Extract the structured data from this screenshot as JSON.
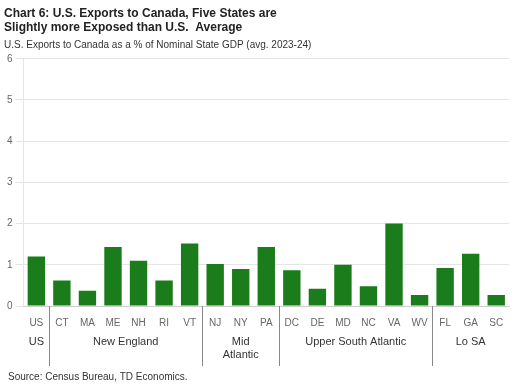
{
  "chart_data": {
    "type": "bar",
    "title": [
      "Chart 6: U.S. Exports to Canada, Five States are",
      "Slightly more Exposed than U.S.  Average"
    ],
    "subtitle": "U.S. Exports to Canada as a % of Nominal State GDP (avg. 2023-24)",
    "source": "Source: Census Bureau, TD Economics.",
    "categories": [
      "US",
      "CT",
      "MA",
      "ME",
      "NH",
      "RI",
      "VT",
      "NJ",
      "NY",
      "PA",
      "DC",
      "DE",
      "MD",
      "NC",
      "VA",
      "WV",
      "FL",
      "GA",
      "SC"
    ],
    "values": [
      1.2,
      0.62,
      0.37,
      1.43,
      1.1,
      0.62,
      1.52,
      1.02,
      0.9,
      1.43,
      0.87,
      0.42,
      1.0,
      0.48,
      2.0,
      0.27,
      0.92,
      1.27,
      0.27
    ],
    "color": "#1a7c1a",
    "annotations": [
      {
        "text": "US",
        "categories": [
          "US"
        ]
      },
      {
        "text": "New England",
        "categories": [
          "CT",
          "MA",
          "ME",
          "NH",
          "RI",
          "VT"
        ]
      },
      {
        "text": "Mid\nAtlantic",
        "categories": [
          "NJ",
          "NY",
          "PA"
        ]
      },
      {
        "text": "Upper South Atlantic",
        "categories": [
          "DC",
          "DE",
          "MD",
          "NC",
          "VA",
          "WV"
        ]
      },
      {
        "text": "Lo SA",
        "categories": [
          "FL",
          "GA",
          "SC"
        ]
      }
    ],
    "ylim": [
      0,
      6
    ],
    "yticks": [
      0,
      1,
      2,
      3,
      4,
      5,
      6
    ],
    "grid": true
  }
}
